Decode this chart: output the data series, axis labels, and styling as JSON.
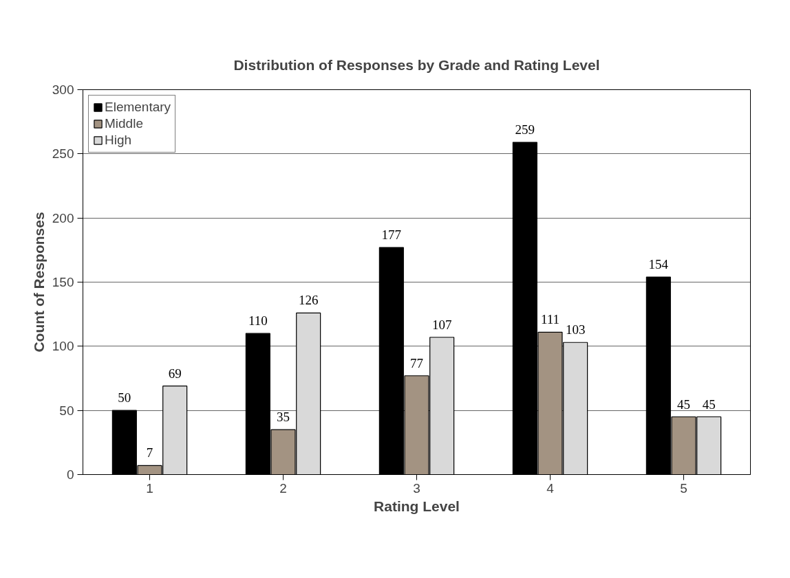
{
  "chart_data": {
    "type": "bar",
    "title": "Distribution of Responses by Grade and Rating Level",
    "xlabel": "Rating Level",
    "ylabel": "Count of Responses",
    "categories": [
      "1",
      "2",
      "3",
      "4",
      "5"
    ],
    "series": [
      {
        "name": "Elementary",
        "color": "#000000",
        "values": [
          50,
          110,
          177,
          259,
          154
        ]
      },
      {
        "name": "Middle",
        "color": "#a39382",
        "values": [
          7,
          35,
          77,
          111,
          45
        ]
      },
      {
        "name": "High",
        "color": "#d9d9d9",
        "values": [
          69,
          126,
          107,
          103,
          45
        ]
      }
    ],
    "ylim": [
      0,
      300
    ],
    "yticks": [
      0,
      50,
      100,
      150,
      200,
      250,
      300
    ],
    "grid": "y",
    "legend": "top left",
    "data_labels": true
  }
}
